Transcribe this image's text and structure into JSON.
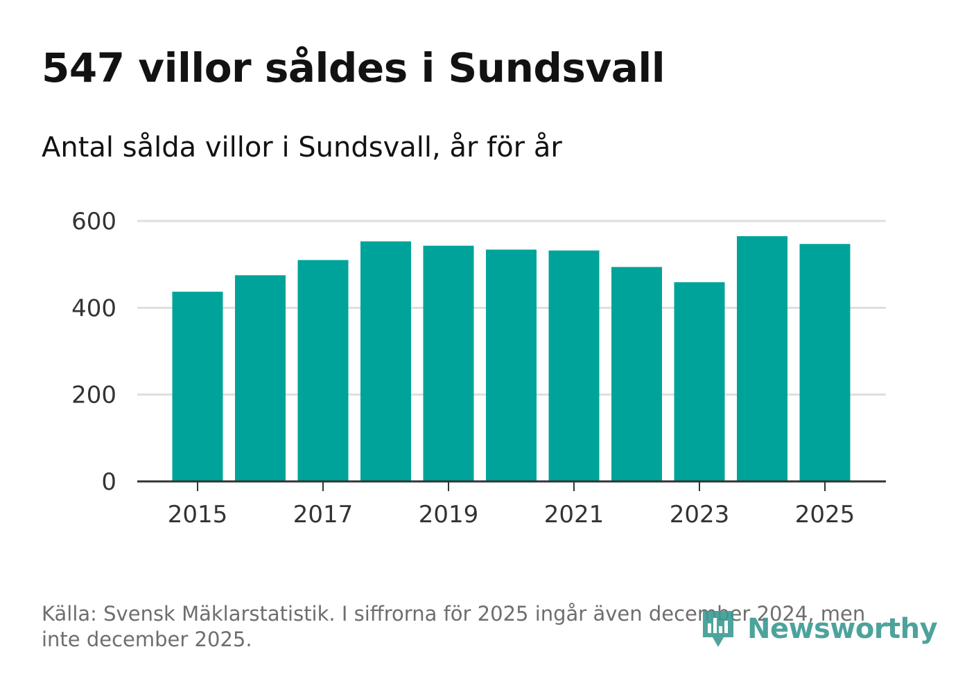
{
  "header": {
    "title": "547 villor såldes i Sundsvall",
    "subtitle": "Antal sålda villor i Sundsvall, år för år"
  },
  "footer": {
    "source": "Källa: Svensk Mäklarstatistik. I siffrorna för 2025 ingår även december 2024, men inte december 2025.",
    "logo_text": "Newsworthy"
  },
  "colors": {
    "bar": "#00a39a",
    "grid": "#dedede",
    "axis": "#333333",
    "logo": "#3a9a92"
  },
  "chart_data": {
    "type": "bar",
    "title": "Antal sålda villor i Sundsvall, år för år",
    "xlabel": "",
    "ylabel": "",
    "categories": [
      "2015",
      "2016",
      "2017",
      "2018",
      "2019",
      "2020",
      "2021",
      "2022",
      "2023",
      "2024",
      "2025"
    ],
    "values": [
      437,
      475,
      510,
      553,
      543,
      534,
      532,
      494,
      459,
      565,
      547
    ],
    "x_tick_labels": [
      "2015",
      "2017",
      "2019",
      "2021",
      "2023",
      "2025"
    ],
    "y_ticks": [
      0,
      200,
      400,
      600
    ],
    "ylim": [
      0,
      600
    ],
    "grid": true
  }
}
